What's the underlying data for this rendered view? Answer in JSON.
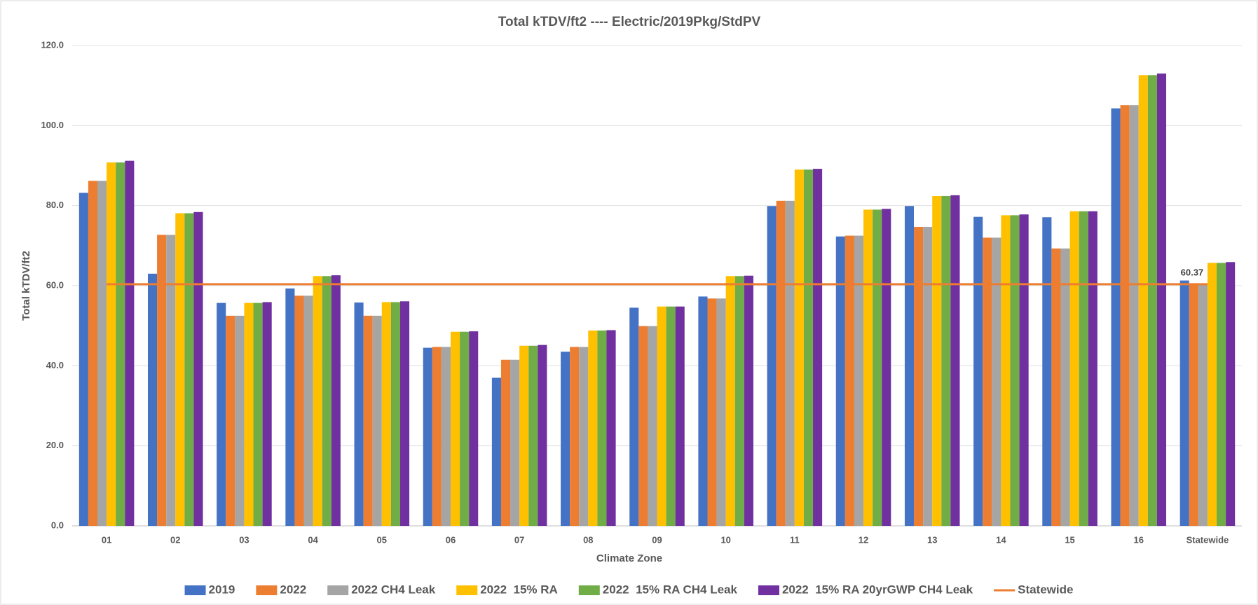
{
  "chart_data": {
    "type": "bar",
    "title": "Total kTDV/ft2 ---- Electric/2019Pkg/StdPV",
    "x_label": "Climate Zone",
    "y_label": "Total kTDV/ft2",
    "categories": [
      "01",
      "02",
      "03",
      "04",
      "05",
      "06",
      "07",
      "08",
      "09",
      "10",
      "11",
      "12",
      "13",
      "14",
      "15",
      "16",
      "Statewide"
    ],
    "series": [
      {
        "name": "2019",
        "color": "#4472c4",
        "values": [
          83.2,
          63.0,
          55.7,
          59.3,
          55.8,
          44.5,
          37.0,
          43.5,
          54.5,
          57.3,
          79.9,
          72.3,
          79.9,
          77.2,
          77.1,
          104.3,
          61.3
        ]
      },
      {
        "name": "2022",
        "color": "#ed7d31",
        "values": [
          86.2,
          72.7,
          52.5,
          57.5,
          52.5,
          44.7,
          41.5,
          44.7,
          49.9,
          56.8,
          81.2,
          72.5,
          74.7,
          72.0,
          69.3,
          105.1,
          60.4
        ]
      },
      {
        "name": "2022 CH4 Leak",
        "color": "#a5a5a5",
        "values": [
          86.2,
          72.7,
          52.5,
          57.5,
          52.5,
          44.7,
          41.5,
          44.7,
          49.9,
          56.8,
          81.2,
          72.5,
          74.7,
          72.0,
          69.3,
          105.1,
          60.4
        ]
      },
      {
        "name": "2022  15% RA",
        "color": "#ffc000",
        "values": [
          90.8,
          78.1,
          55.7,
          62.4,
          55.9,
          48.5,
          45.0,
          48.8,
          54.8,
          62.4,
          89.0,
          79.0,
          82.4,
          77.6,
          78.6,
          112.6,
          65.7
        ]
      },
      {
        "name": "2022  15% RA CH4 Leak",
        "color": "#70ad47",
        "values": [
          90.8,
          78.1,
          55.7,
          62.4,
          55.9,
          48.5,
          45.0,
          48.8,
          54.8,
          62.4,
          89.0,
          79.0,
          82.4,
          77.6,
          78.6,
          112.6,
          65.7
        ]
      },
      {
        "name": "2022  15% RA 20yrGWP CH4 Leak",
        "color": "#7030a0",
        "values": [
          91.2,
          78.4,
          55.9,
          62.6,
          56.1,
          48.6,
          45.2,
          48.9,
          54.8,
          62.5,
          89.2,
          79.2,
          82.6,
          77.8,
          78.6,
          113.0,
          65.9
        ]
      },
      {
        "name": "Statewide",
        "color": "#ed7d31",
        "type": "line",
        "values": [
          60.37,
          60.37,
          60.37,
          60.37,
          60.37,
          60.37,
          60.37,
          60.37,
          60.37,
          60.37,
          60.37,
          60.37,
          60.37,
          60.37,
          60.37,
          60.37,
          60.37
        ],
        "labeled_index": 16
      }
    ],
    "ylim": [
      0,
      120
    ],
    "yticks": [
      {
        "value": 0,
        "label": "0.0"
      },
      {
        "value": 20,
        "label": "20.0"
      },
      {
        "value": 40,
        "label": "40.0"
      },
      {
        "value": 60,
        "label": "60.0"
      },
      {
        "value": 80,
        "label": "80.0"
      },
      {
        "value": 100,
        "label": "100.0"
      },
      {
        "value": 120,
        "label": "120.0"
      }
    ],
    "grid": true,
    "legend": "bottom"
  }
}
